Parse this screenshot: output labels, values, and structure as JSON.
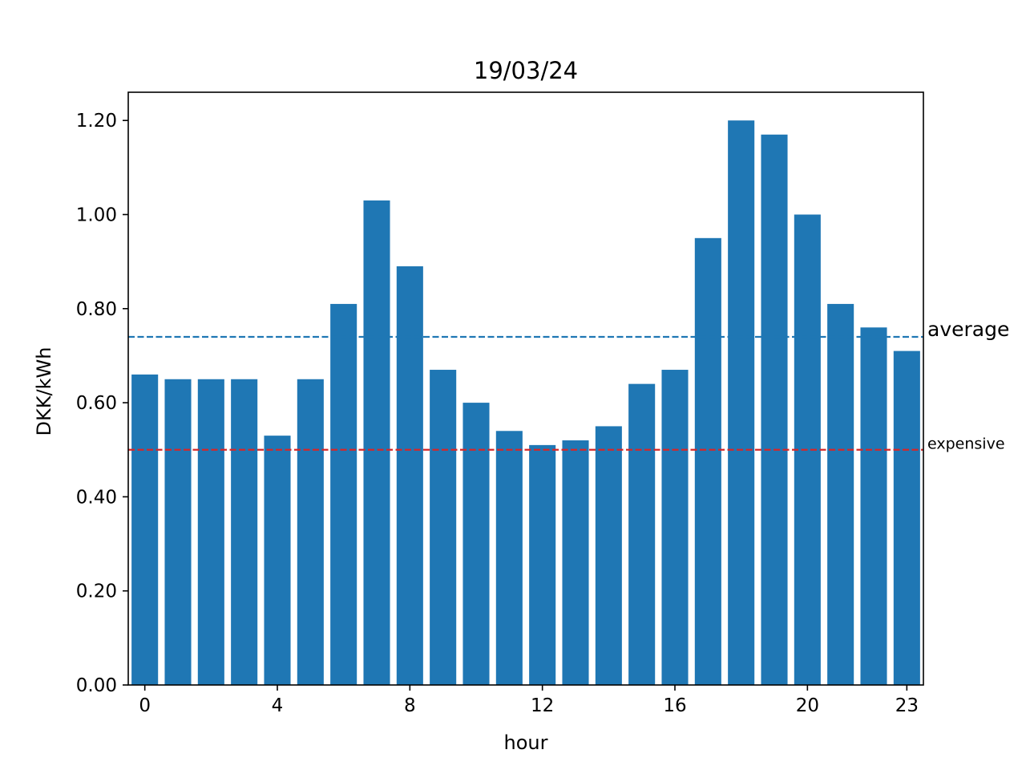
{
  "chart_data": {
    "type": "bar",
    "title": "19/03/24",
    "xlabel": "hour",
    "ylabel": "DKK/kWh",
    "categories": [
      0,
      1,
      2,
      3,
      4,
      5,
      6,
      7,
      8,
      9,
      10,
      11,
      12,
      13,
      14,
      15,
      16,
      17,
      18,
      19,
      20,
      21,
      22,
      23
    ],
    "values": [
      0.66,
      0.65,
      0.65,
      0.65,
      0.53,
      0.65,
      0.81,
      1.03,
      0.89,
      0.67,
      0.6,
      0.54,
      0.51,
      0.52,
      0.55,
      0.64,
      0.67,
      0.95,
      1.2,
      1.17,
      1.0,
      0.81,
      0.76,
      0.71
    ],
    "xticks": [
      "0",
      "4",
      "8",
      "12",
      "16",
      "20",
      "23"
    ],
    "xtick_values": [
      0,
      4,
      8,
      12,
      16,
      20,
      23
    ],
    "yticks": [
      "0.00",
      "0.20",
      "0.40",
      "0.60",
      "0.80",
      "1.00",
      "1.20"
    ],
    "ytick_values": [
      0,
      0.2,
      0.4,
      0.6,
      0.8,
      1.0,
      1.2
    ],
    "ylim": [
      0,
      1.26
    ],
    "xlim": [
      -0.5,
      23.5
    ],
    "grid": false,
    "bar_color": "#1f77b4",
    "reference_lines": [
      {
        "label": "average",
        "value": 0.74,
        "color": "#1f77b4",
        "style": "dashed"
      },
      {
        "label": "expensive",
        "value": 0.5,
        "color": "#d62728",
        "style": "dashed"
      }
    ]
  }
}
